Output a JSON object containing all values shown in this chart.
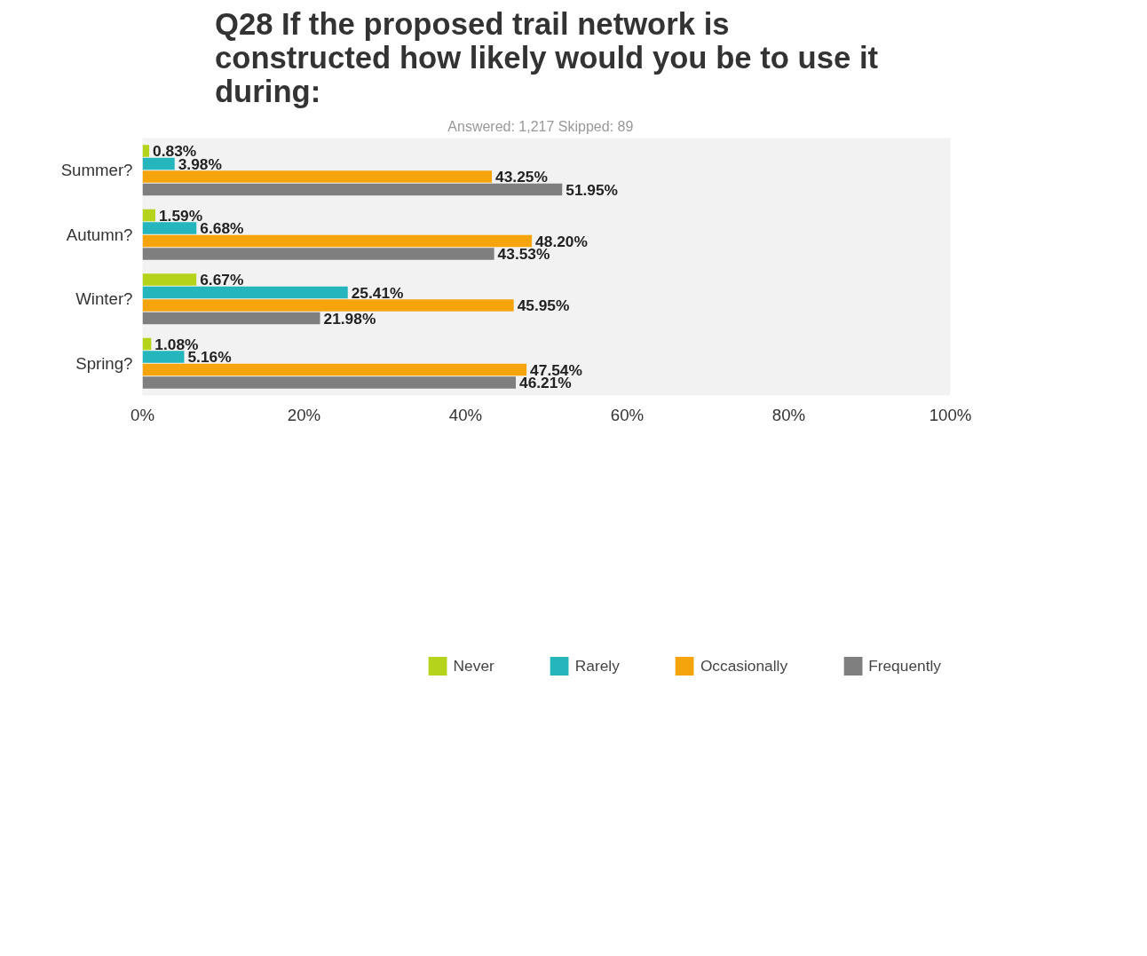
{
  "chart_data": {
    "type": "bar",
    "orientation": "horizontal",
    "title": "Q28 If the proposed trail network is constructed how likely would you be to use it during:",
    "subtitle": "Answered: 1,217    Skipped: 89",
    "categories": [
      "Summer?",
      "Autumn?",
      "Winter?",
      "Spring?"
    ],
    "series": [
      {
        "name": "Never",
        "color": "#b5d31a",
        "values": [
          0.83,
          1.59,
          6.67,
          1.08
        ],
        "value_labels": [
          "0.83%",
          "1.59%",
          "6.67%",
          "1.08%"
        ]
      },
      {
        "name": "Rarely",
        "color": "#25b6bd",
        "values": [
          3.98,
          6.68,
          25.41,
          5.16
        ],
        "value_labels": [
          "3.98%",
          "6.68%",
          "25.41%",
          "5.16%"
        ]
      },
      {
        "name": "Occasionally",
        "color": "#f5a40c",
        "values": [
          43.25,
          48.2,
          45.95,
          47.54
        ],
        "value_labels": [
          "43.25%",
          "48.20%",
          "45.95%",
          "47.54%"
        ]
      },
      {
        "name": "Frequently",
        "color": "#7f7f7f",
        "values": [
          51.95,
          43.53,
          21.98,
          46.21
        ],
        "value_labels": [
          "51.95%",
          "43.53%",
          "21.98%",
          "46.21%"
        ]
      }
    ],
    "xlim": [
      0,
      100
    ],
    "xticks": [
      {
        "value": 0,
        "label": "0%"
      },
      {
        "value": 20,
        "label": "20%"
      },
      {
        "value": 40,
        "label": "40%"
      },
      {
        "value": 60,
        "label": "60%"
      },
      {
        "value": 80,
        "label": "80%"
      },
      {
        "value": 100,
        "label": "100%"
      }
    ],
    "grid": false,
    "legend": "bottom"
  }
}
